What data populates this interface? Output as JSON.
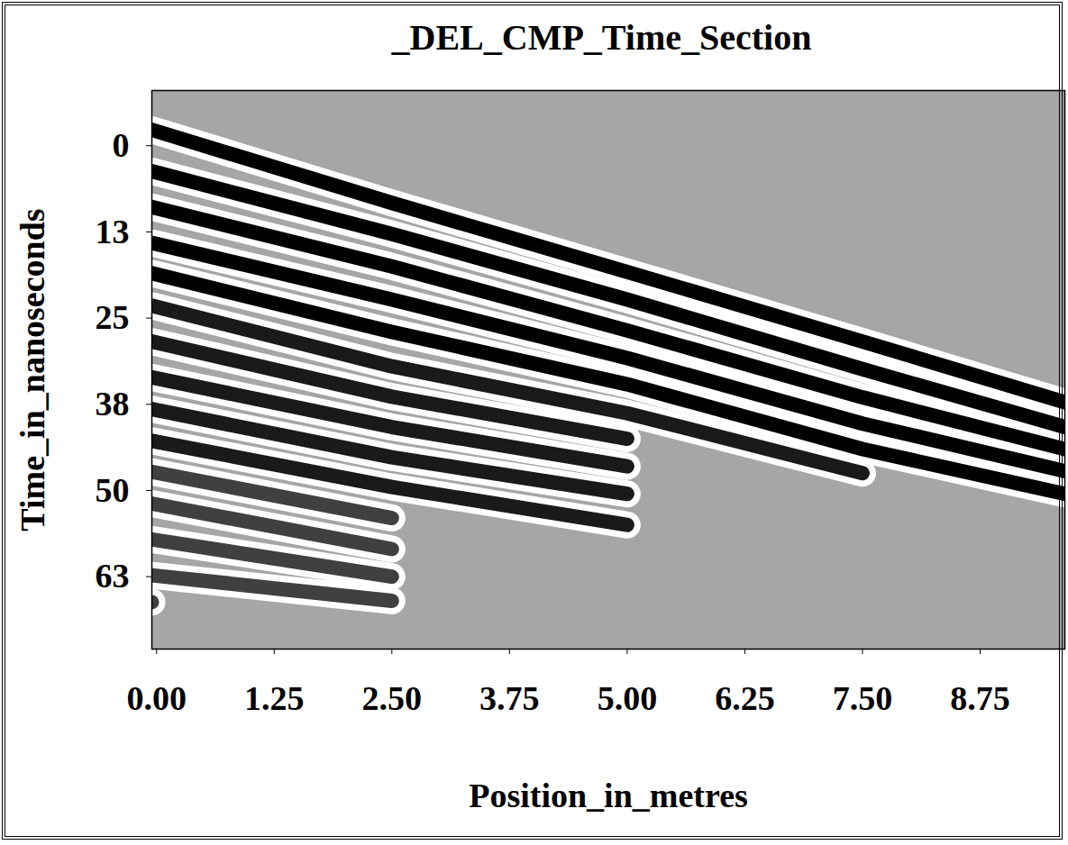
{
  "chart_data": {
    "type": "line",
    "title": "_DEL_CMP_Time_Section",
    "x_label": "Position_in_metres",
    "y_label": "Time_in_nanoseconds",
    "xlim": [
      -0.05,
      9.65
    ],
    "ylim": [
      -8,
      73
    ],
    "xticks": [
      {
        "value": 0,
        "label": "0.00"
      },
      1.25,
      {
        "value": 2.5,
        "label": "2.50"
      },
      3.75,
      {
        "value": 5,
        "label": "5.00"
      },
      6.25,
      {
        "value": 7.5,
        "label": "7.50"
      },
      8.75
    ],
    "yticks": [
      0,
      {
        "value": 12.5,
        "label": "13"
      },
      25,
      {
        "value": 37.5,
        "label": "38"
      },
      50,
      {
        "value": 62.5,
        "label": "63"
      }
    ],
    "grid": false,
    "x": [
      -0.05,
      2.5,
      5,
      7.5,
      9.65
    ],
    "series": [
      {
        "color": "#000000",
        "values": [
          -2.3,
          8.3,
          18.3,
          28.4,
          37.2
        ]
      },
      {
        "color": "#000000",
        "values": [
          3.7,
          12.8,
          22.3,
          32.4,
          40.8
        ]
      },
      {
        "color": "#000000",
        "values": [
          8.9,
          17.5,
          26.8,
          36.5,
          44.0
        ]
      },
      {
        "color": "#000000",
        "values": [
          14.1,
          22.3,
          30.8,
          40.3,
          47.2
        ]
      },
      {
        "color": "#000000",
        "values": [
          18.5,
          27.0,
          34.6,
          44.0,
          50.5
        ]
      },
      {
        "color": "#1a1a1a",
        "values": [
          23.2,
          32.0,
          38.8,
          47.5,
          null
        ]
      },
      {
        "color": "#1a1a1a",
        "values": [
          28.4,
          36.4,
          42.5,
          null,
          null
        ]
      },
      {
        "color": "#1a1a1a",
        "values": [
          33.6,
          40.8,
          46.5,
          null,
          null
        ]
      },
      {
        "color": "#1a1a1a",
        "values": [
          38.2,
          45.2,
          50.5,
          null,
          null
        ]
      },
      {
        "color": "#1a1a1a",
        "values": [
          42.8,
          49.5,
          55.0,
          null,
          null
        ]
      },
      {
        "color": "#404040",
        "values": [
          47.3,
          54.0,
          null,
          null,
          null
        ]
      },
      {
        "color": "#404040",
        "values": [
          51.9,
          58.5,
          null,
          null,
          null
        ]
      },
      {
        "color": "#404040",
        "values": [
          57.1,
          62.5,
          null,
          null,
          null
        ]
      },
      {
        "color": "#404040",
        "values": [
          62.3,
          66.0,
          null,
          null,
          null
        ]
      },
      {
        "color": "#404040",
        "values": [
          66.2,
          null,
          null,
          null,
          null
        ]
      }
    ]
  }
}
